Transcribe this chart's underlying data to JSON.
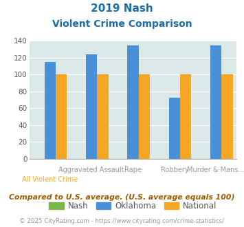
{
  "title_line1": "2019 Nash",
  "title_line2": "Violent Crime Comparison",
  "categories": [
    "All Violent Crime",
    "Aggravated Assault",
    "Rape",
    "Robbery",
    "Murder & Mans..."
  ],
  "top_labels": [
    "",
    "Aggravated Assault",
    "Rape",
    "Robbery",
    "Murder & Mans..."
  ],
  "bot_labels": [
    "All Violent Crime",
    "",
    "",
    "",
    ""
  ],
  "nash_values": [
    0,
    0,
    0,
    0,
    0
  ],
  "oklahoma_values": [
    115,
    124,
    135,
    73,
    135
  ],
  "national_values": [
    100,
    100,
    100,
    100,
    100
  ],
  "nash_color": "#7ab648",
  "oklahoma_color": "#4a90d9",
  "national_color": "#f5a623",
  "bg_color": "#dce9e9",
  "ylim": [
    0,
    140
  ],
  "yticks": [
    0,
    20,
    40,
    60,
    80,
    100,
    120,
    140
  ],
  "title_color": "#1a6fa8",
  "top_label_color": "#999999",
  "bot_label_color": "#f5a623",
  "footer_text": "Compared to U.S. average. (U.S. average equals 100)",
  "copyright_text": "© 2025 CityRating.com - https://www.cityrating.com/crime-statistics/",
  "footer_color": "#a05a00",
  "copyright_color": "#999999",
  "legend_labels": [
    "Nash",
    "Oklahoma",
    "National"
  ],
  "legend_text_color": "#555555",
  "bar_width": 0.27,
  "grid_color": "#ffffff",
  "grid_linewidth": 0.8
}
